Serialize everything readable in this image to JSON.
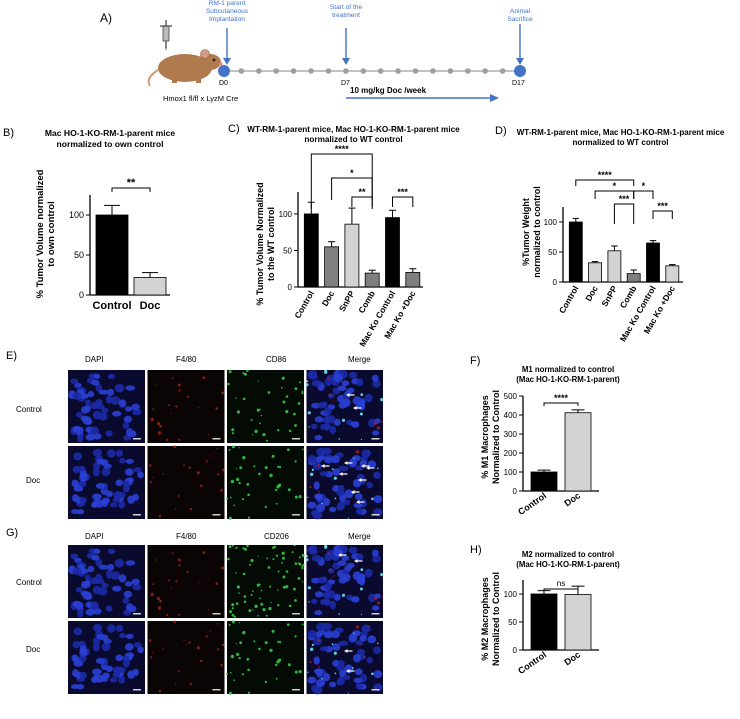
{
  "timeline": {
    "panel_label": "A)",
    "mouse_label": "Hmox1 fl/fl x LyzM Cre",
    "events": [
      {
        "text": "RM-1 parent Subcutaneous Implantation",
        "day": "D0"
      },
      {
        "text": "Start of the treatment",
        "day": "D7"
      },
      {
        "text": "Animal Sacrifice",
        "day": "D17"
      }
    ],
    "treatment_label": "10 mg/kg Doc /week",
    "colors": {
      "accent": "#4472c4",
      "dot": "#9e9e9e"
    }
  },
  "panel_b": {
    "panel_label": "B)",
    "title_line1": "Mac HO-1-KO-RM-1-parent mice",
    "title_line2": "normalized to own control",
    "ylabel_line1": "% Tumor Volume normalized",
    "ylabel_line2": "to own control",
    "significance": "**"
  },
  "panel_c": {
    "panel_label": "C)",
    "title_line1": "WT-RM-1-parent mice, Mac HO-1-KO-RM-1-parent mice",
    "title_line2": "normalized to WT control",
    "ylabel_line1": "% Tumor Volume Normalized",
    "ylabel_line2": "to the WT control",
    "significance": [
      "****",
      "*",
      "**",
      "***"
    ]
  },
  "panel_d": {
    "panel_label": "D)",
    "title_line1": "WT-RM-1-parent mice, Mac HO-1-KO-RM-1-parent mice",
    "title_line2": "normalized to WT control",
    "ylabel_line1": "%Tumor Weight",
    "ylabel_line2": "normalized to control",
    "significance": [
      "****",
      "*",
      "***",
      "*",
      "***"
    ]
  },
  "panel_e": {
    "panel_label": "E)",
    "columns": [
      "DAPI",
      "F4/80",
      "CD86",
      "Merge"
    ],
    "rows": [
      "Control",
      "Doc"
    ]
  },
  "panel_f": {
    "panel_label": "F)",
    "title_line1": "M1 normalized to control",
    "title_line2": "(Mac HO-1-KO-RM-1-parent)",
    "ylabel_line1": "% M1 Macrophages",
    "ylabel_line2": "Normalized to Control",
    "significance": "****"
  },
  "panel_g": {
    "panel_label": "G)",
    "columns": [
      "DAPI",
      "F4/80",
      "CD206",
      "Merge"
    ],
    "rows": [
      "Control",
      "Doc"
    ]
  },
  "panel_h": {
    "panel_label": "H)",
    "title_line1": "M2 normalized to control",
    "title_line2": "(Mac HO-1-KO-RM-1-parent)",
    "ylabel_line1": "% M2 Macrophages",
    "ylabel_line2": "Normalized to Control",
    "significance": "ns"
  },
  "chart_data": [
    {
      "id": "B",
      "type": "bar",
      "categories": [
        "Control",
        "Doc"
      ],
      "values": [
        100,
        22
      ],
      "errors": [
        12,
        6
      ],
      "colors": [
        "#000000",
        "#d3d3d3"
      ],
      "yticks": [
        0,
        50,
        100
      ],
      "ylim": [
        0,
        125
      ],
      "ylabel": "% Tumor Volume normalized to own control"
    },
    {
      "id": "C",
      "type": "bar",
      "categories": [
        "Control",
        "Doc",
        "SnPP",
        "Comb",
        "Mac Ko Control",
        "Mac Ko +Doc"
      ],
      "values": [
        100,
        55,
        86,
        19,
        95,
        20
      ],
      "errors": [
        16,
        7,
        22,
        4,
        10,
        5
      ],
      "colors": [
        "#000000",
        "#7f7f7f",
        "#d3d3d3",
        "#7f7f7f",
        "#000000",
        "#7f7f7f"
      ],
      "yticks": [
        0,
        50,
        100
      ],
      "ylim": [
        0,
        130
      ],
      "ylabel": "% Tumor Volume Normalized to the WT control"
    },
    {
      "id": "D",
      "type": "bar",
      "categories": [
        "Control",
        "Doc",
        "SnPP",
        "Comb",
        "Mac Ko Control",
        "Mac Ko +Doc"
      ],
      "values": [
        100,
        32,
        52,
        14,
        65,
        27
      ],
      "errors": [
        6,
        2,
        8,
        6,
        4,
        2
      ],
      "colors": [
        "#000000",
        "#d3d3d3",
        "#d3d3d3",
        "#7f7f7f",
        "#000000",
        "#d3d3d3"
      ],
      "yticks": [
        0,
        50,
        100
      ],
      "ylim": [
        0,
        125
      ],
      "ylabel": "%Tumor Weight normalized to control"
    },
    {
      "id": "F",
      "type": "bar",
      "categories": [
        "Control",
        "Doc"
      ],
      "values": [
        100,
        412
      ],
      "errors": [
        10,
        15
      ],
      "colors": [
        "#000000",
        "#d3d3d3"
      ],
      "yticks": [
        0,
        100,
        200,
        300,
        400,
        500
      ],
      "ylim": [
        0,
        500
      ],
      "ylabel": "% M1 Macrophages Normalized to Control"
    },
    {
      "id": "H",
      "type": "bar",
      "categories": [
        "Control",
        "Doc"
      ],
      "values": [
        100,
        99
      ],
      "errors": [
        6,
        15
      ],
      "colors": [
        "#000000",
        "#d3d3d3"
      ],
      "yticks": [
        0,
        50,
        100
      ],
      "ylim": [
        0,
        125
      ],
      "ylabel": "% M2 Macrophages Normalized to Control"
    }
  ]
}
